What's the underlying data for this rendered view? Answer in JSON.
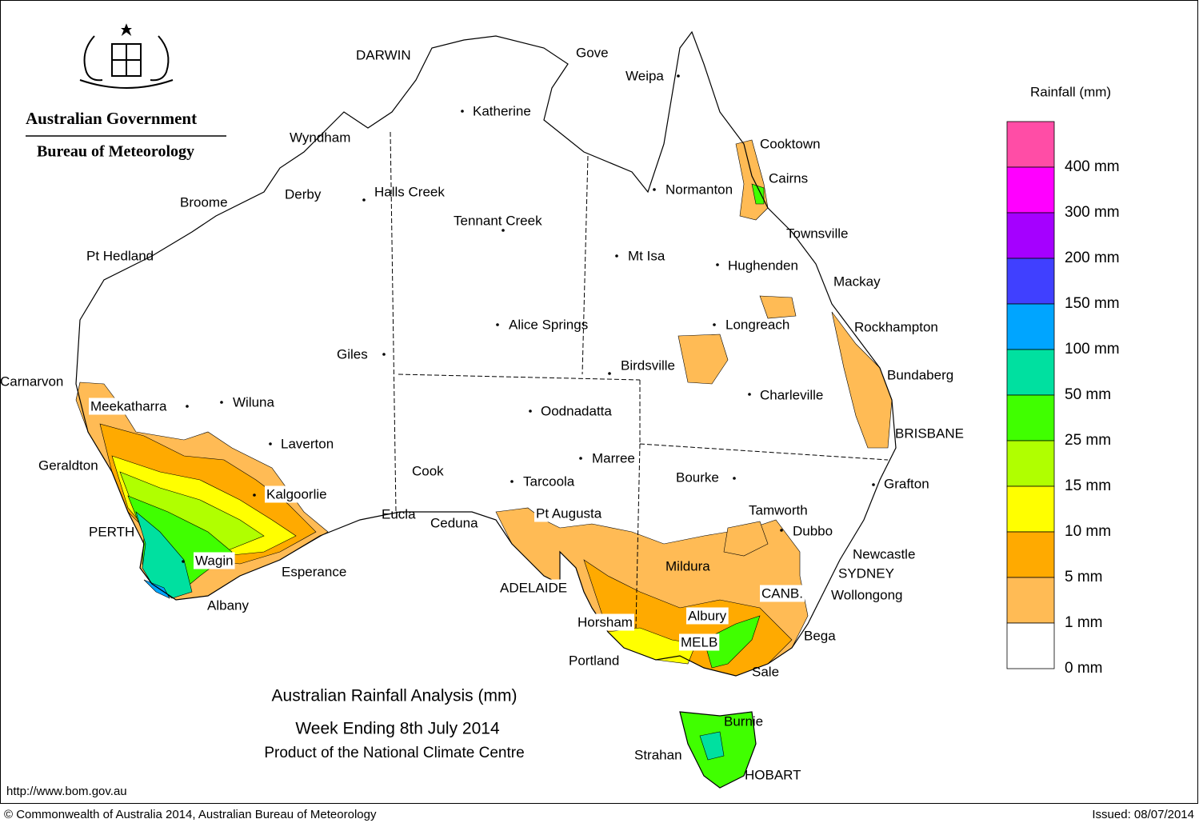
{
  "header": {
    "agency": "Australian Government",
    "bureau": "Bureau of Meteorology"
  },
  "places": [
    "DARWIN",
    "Gove",
    "Weipa",
    "Katherine",
    "Wyndham",
    "Derby",
    "Halls Creek",
    "Broome",
    "Tennant Creek",
    "Normanton",
    "Cooktown",
    "Cairns",
    "Townsville",
    "Pt Hedland",
    "Mt Isa",
    "Hughenden",
    "Mackay",
    "Alice Springs",
    "Longreach",
    "Rockhampton",
    "Giles",
    "Birdsville",
    "Bundaberg",
    "Carnarvon",
    "Charleville",
    "Meekatharra",
    "Wiluna",
    "Oodnadatta",
    "BRISBANE",
    "Laverton",
    "Marree",
    "Geraldton",
    "Cook",
    "Bourke",
    "Tarcoola",
    "Grafton",
    "Kalgoorlie",
    "Tamworth",
    "Eucla",
    "Pt Augusta",
    "Ceduna",
    "Dubbo",
    "PERTH",
    "Newcastle",
    "Wagin",
    "Mildura",
    "SYDNEY",
    "Esperance",
    "ADELAIDE",
    "CANB.",
    "Wollongong",
    "Albany",
    "Albury",
    "Horsham",
    "Bega",
    "MELB",
    "Portland",
    "Sale",
    "Burnie",
    "Strahan",
    "HOBART"
  ],
  "legend": {
    "title": "Rainfall (mm)",
    "colors": [
      "#ff4da6",
      "#ff00ff",
      "#a500ff",
      "#4040ff",
      "#00a5ff",
      "#00e0a0",
      "#40ff00",
      "#b0ff00",
      "#ffff00",
      "#ffaa00",
      "#ffbb55",
      "#ffffff"
    ],
    "labels": [
      "400 mm",
      "300 mm",
      "200 mm",
      "150 mm",
      "100 mm",
      "50 mm",
      "25 mm",
      "15 mm",
      "10 mm",
      "5 mm",
      "1 mm",
      "0 mm"
    ]
  },
  "title": {
    "line1": "Australian Rainfall Analysis (mm)",
    "line2": "Week Ending 8th July 2014",
    "line3": "Product of the National Climate Centre"
  },
  "footer": {
    "url": "http://www.bom.gov.au",
    "copyright": "© Commonwealth of Australia 2014, Australian Bureau of Meteorology",
    "issued": "Issued: 08/07/2014"
  }
}
